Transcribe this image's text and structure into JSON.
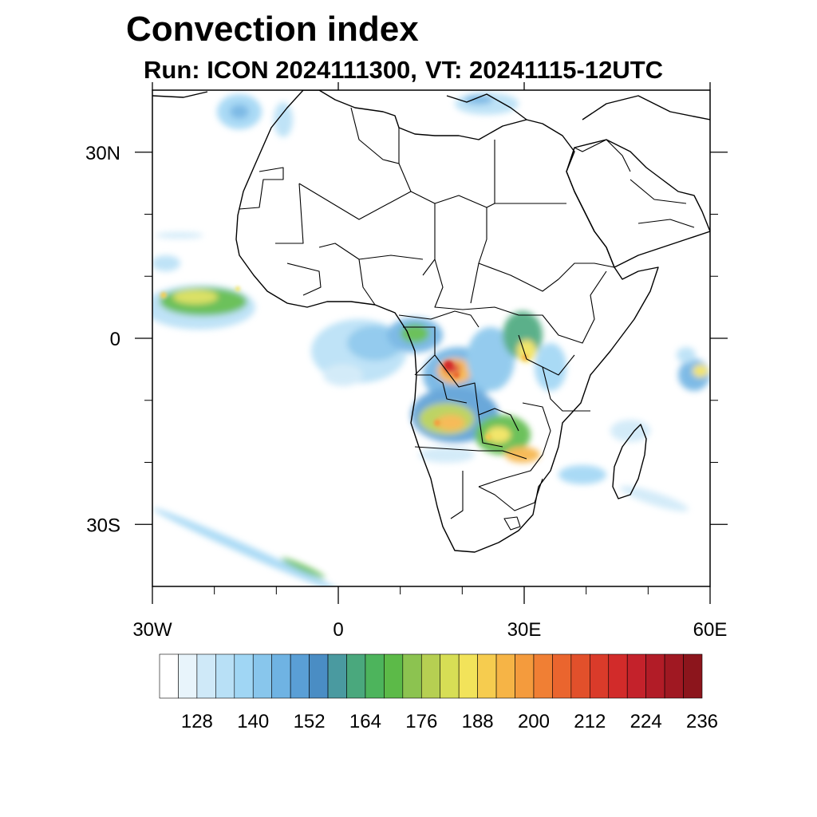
{
  "title": "Convection index",
  "subtitle": {
    "run": "Run: ICON 2024111300,",
    "valid_time": "VT: 20241115-12UTC"
  },
  "map": {
    "region": "Africa",
    "projection": "lat-lon",
    "lon_range": [
      -30,
      60
    ],
    "lat_range": [
      -40,
      40
    ],
    "lon_ticks": [
      {
        "value": -30,
        "label": "30W"
      },
      {
        "value": 0,
        "label": "0"
      },
      {
        "value": 30,
        "label": "30E"
      },
      {
        "value": 60,
        "label": "60E"
      }
    ],
    "lat_ticks": [
      {
        "value": 30,
        "label": "30N"
      },
      {
        "value": 0,
        "label": "0"
      },
      {
        "value": -30,
        "label": "30S"
      }
    ],
    "minor_lon_ticks": [
      -20,
      -10,
      10,
      20,
      40,
      50
    ],
    "minor_lat_ticks": [
      20,
      10,
      -10,
      -20
    ]
  },
  "colorbar": {
    "colors": [
      "#ffffff",
      "#e8f4fb",
      "#cfe9f8",
      "#b8e0f6",
      "#a0d6f4",
      "#88c6ec",
      "#6fb3e3",
      "#5a9fd6",
      "#4a8dc4",
      "#4a9aa0",
      "#4aa87d",
      "#4db45c",
      "#5cba48",
      "#8cc350",
      "#b6cf52",
      "#d7de55",
      "#f2e35a",
      "#f6cc4f",
      "#f6b446",
      "#f49b3d",
      "#f07f34",
      "#ea652e",
      "#e2502b",
      "#da3b2a",
      "#d22b2a",
      "#c4222b",
      "#b21c27",
      "#a01822",
      "#8c151c"
    ],
    "labels": [
      "128",
      "140",
      "152",
      "164",
      "176",
      "188",
      "200",
      "212",
      "224",
      "236"
    ]
  }
}
